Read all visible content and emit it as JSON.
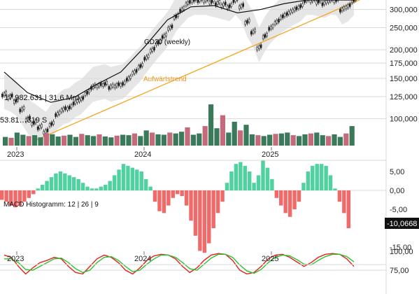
{
  "colors": {
    "band": "#e6e6e6",
    "candle_up": "#222222",
    "ma": "#111111",
    "trend": "#f5a623",
    "vol_up": "#3a7a5a",
    "vol_down": "#c46a7a",
    "hist_pos": "#4fd1a0",
    "hist_neg": "#f06a6a",
    "stoch_k": "#e02020",
    "stoch_d": "#2fc12f",
    "grid": "#d9d9d9"
  },
  "annotations": {
    "ma_label": "GD20 (weekly)",
    "trend_label": "Aufwärtstrend",
    "volume_value": "17.982.631 | 31,6 Mrd.",
    "volume_value_2": "53.81…319 S",
    "macd_label": "MACD Histogramm: 12 | 26 | 9",
    "macd_value": "-10,0668"
  },
  "chart_data": [
    {
      "type": "line",
      "title": "",
      "ylabel": "",
      "y_scale": "log",
      "ylim": [
        78000,
        330000
      ],
      "x_labels": [
        "2023",
        "2024",
        "2025"
      ],
      "y_ticks": [
        100000,
        125000,
        150000,
        175000,
        200000,
        250000,
        300000
      ],
      "y_tick_labels": [
        "100,000",
        "125,000",
        "150,000",
        "175,000",
        "200,000",
        "250,000",
        "300,000"
      ],
      "series": [
        {
          "name": "GD20 (weekly)",
          "x": [
            0,
            10,
            20,
            30,
            40,
            50,
            60,
            70,
            80,
            90,
            100,
            110,
            120,
            130,
            140,
            150
          ],
          "values": [
            160000,
            130000,
            118000,
            124000,
            142000,
            160000,
            205000,
            270000,
            308000,
            312000,
            290000,
            300000,
            318000,
            330000,
            330000,
            330000
          ]
        }
      ],
      "close": [
        128000,
        125000,
        120000,
        110000,
        100000,
        96000,
        92000,
        88000,
        95000,
        105000,
        110000,
        112000,
        118000,
        122000,
        130000,
        138000,
        140000,
        142000,
        138000,
        140000,
        142000,
        150000,
        160000,
        170000,
        185000,
        200000,
        215000,
        230000,
        250000,
        280000,
        300000,
        320000,
        330000,
        330000,
        330000,
        325000,
        320000,
        315000,
        310000,
        330000,
        310000,
        265000,
        240000,
        205000,
        230000,
        250000,
        265000,
        280000,
        290000,
        300000,
        310000,
        330000,
        330000,
        325000,
        320000,
        330000,
        330000,
        300000,
        310000,
        330000
      ],
      "trendline": {
        "from": [
          5,
          80000
        ],
        "to": [
          59,
          330000
        ]
      }
    },
    {
      "type": "bar",
      "title": "",
      "volume": [
        20,
        18,
        30,
        25,
        22,
        24,
        19,
        28,
        26,
        21,
        23,
        25,
        20,
        27,
        24,
        22,
        26,
        21,
        19,
        23,
        25,
        24,
        28,
        22,
        35,
        30,
        26,
        25,
        30,
        28,
        32,
        42,
        25,
        28,
        45,
        95,
        40,
        70,
        30,
        55,
        35,
        48,
        26,
        24,
        22,
        25,
        27,
        28,
        30,
        24,
        22,
        26,
        28,
        30,
        24,
        22,
        26,
        20,
        28,
        45
      ]
    },
    {
      "type": "bar",
      "title": "MACD Histogramm: 12 | 26 | 9",
      "y_ticks": [
        5,
        0,
        -5,
        -10,
        -15
      ],
      "y_tick_labels": [
        "5,00",
        "0,00",
        "-5,00",
        "",
        "-15,00"
      ],
      "ylim": [
        -18,
        8
      ],
      "x_labels": [
        "2023",
        "2024",
        "2025"
      ],
      "values": [
        -2.5,
        -3.0,
        -4.0,
        -4.5,
        -4.0,
        -3.0,
        -2.0,
        -1.0,
        0.5,
        1.5,
        2.5,
        3.5,
        4.5,
        5.0,
        4.5,
        4.0,
        3.5,
        3.0,
        2.0,
        1.0,
        0.5,
        0.5,
        1.0,
        1.5,
        2.5,
        4.0,
        5.5,
        7.0,
        6.5,
        6.0,
        5.5,
        5.0,
        3.0,
        1.0,
        -3.0,
        -5.5,
        -6.0,
        -4.0,
        -2.0,
        -1.0,
        -1.5,
        -4.0,
        -8.0,
        -12.0,
        -16.0,
        -16.5,
        -14.0,
        -10.0,
        -6.0,
        -3.0,
        2.0,
        5.0,
        7.0,
        7.5,
        6.5,
        5.0,
        2.0,
        4.0,
        8.0,
        6.0,
        3.0,
        -2.0,
        -4.0,
        -6.0,
        -7.0,
        -5.0,
        -3.0,
        2.0,
        5.0,
        6.5,
        7.0,
        7.0,
        6.5,
        4.0,
        0.5,
        -3.0,
        -6.0,
        -10.0
      ]
    },
    {
      "type": "line",
      "title": "",
      "y_ticks": [
        100,
        75
      ],
      "y_tick_labels": [
        "100,00",
        "75,00"
      ],
      "ylim": [
        60,
        105
      ],
      "series": [
        {
          "name": "",
          "values": [
            95,
            92,
            80,
            70,
            78,
            85,
            88,
            92,
            90,
            80,
            72,
            70,
            80,
            90,
            95,
            92,
            85,
            75,
            70,
            78,
            88,
            94,
            96,
            95,
            90,
            80,
            72,
            78,
            88,
            95,
            97,
            96,
            88,
            75,
            70,
            72,
            80,
            90,
            95,
            96,
            92,
            86,
            80,
            85,
            92,
            96,
            97,
            96,
            90,
            80
          ]
        },
        {
          "name": "",
          "values": [
            90,
            90,
            85,
            76,
            75,
            80,
            85,
            90,
            91,
            85,
            77,
            72,
            75,
            85,
            92,
            93,
            88,
            80,
            73,
            75,
            83,
            90,
            95,
            95,
            92,
            85,
            77,
            75,
            83,
            91,
            96,
            96,
            92,
            82,
            74,
            71,
            76,
            85,
            92,
            95,
            94,
            89,
            83,
            82,
            88,
            93,
            96,
            96,
            93,
            86
          ]
        }
      ]
    }
  ]
}
